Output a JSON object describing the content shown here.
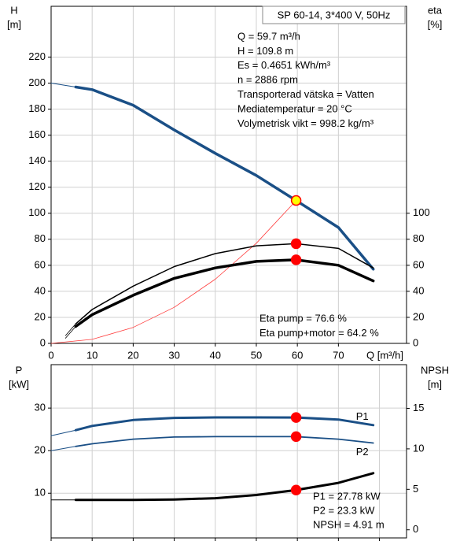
{
  "chart_data": [
    {
      "type": "line",
      "ylabel": [
        "H",
        "[m]"
      ],
      "y2label": [
        "eta",
        "[%]"
      ],
      "xlabel": "Q [m³/h]",
      "box_title": "SP 60-14, 3*400 V, 50Hz",
      "annotations": [
        "Q = 59.7 m³/h",
        "H = 109.8 m",
        "Es = 0.4651 kWh/m³",
        "n = 2886 rpm",
        "Transporterad vätska = Vatten",
        "Mediatemperatur = 20 °C",
        "Volymetrisk vikt = 998.2 kg/m³"
      ],
      "notes": [
        "Eta pump = 76.6 %",
        "Eta pump+motor = 64.2 %"
      ],
      "xlim": [
        0,
        86.6
      ],
      "xticks": [
        0,
        10,
        20,
        30,
        40,
        50,
        60,
        70
      ],
      "xtick_labels": true,
      "ylim": [
        0,
        259
      ],
      "yticks": [
        0,
        20,
        40,
        60,
        80,
        100,
        120,
        140,
        160,
        180,
        200,
        220
      ],
      "y2lim": [
        0,
        259
      ],
      "y2ticks": [
        0,
        20,
        40,
        60,
        80,
        100
      ],
      "grid": true,
      "series": [
        {
          "color": "#1a4f86",
          "line_width": 1,
          "x": [
            0,
            6
          ],
          "values": [
            200,
            197
          ]
        },
        {
          "color": "#1a4f86",
          "line_width": 3.5,
          "x": [
            6,
            10,
            20,
            30,
            40,
            50,
            59.7,
            70,
            78.5
          ],
          "values": [
            197,
            195,
            183,
            164,
            146,
            129,
            109.8,
            89,
            57
          ]
        },
        {
          "color": "#ff3b3b",
          "line_width": 0.8,
          "x": [
            0,
            10,
            20,
            30,
            40,
            50,
            59.7
          ],
          "values": [
            0,
            3.1,
            12.3,
            27.7,
            49.3,
            77,
            109.8
          ]
        },
        {
          "color": "#000000",
          "line_width": 0.8,
          "axis": "y2",
          "x": [
            3.5,
            6
          ],
          "values": [
            6,
            15
          ]
        },
        {
          "color": "#000000",
          "line_width": 1.5,
          "axis": "y2",
          "x": [
            6,
            10,
            20,
            30,
            40,
            50,
            59.7,
            70,
            78.5
          ],
          "values": [
            15,
            26,
            44,
            59,
            69,
            75,
            76.6,
            73,
            58
          ]
        },
        {
          "color": "#000000",
          "line_width": 0.8,
          "axis": "y2",
          "x": [
            3.5,
            6
          ],
          "values": [
            4,
            13
          ]
        },
        {
          "color": "#000000",
          "line_width": 3.5,
          "axis": "y2",
          "x": [
            6,
            10,
            20,
            30,
            40,
            50,
            59.7,
            70,
            78.5
          ],
          "values": [
            13,
            22,
            37,
            50,
            58,
            63,
            64.2,
            60,
            48
          ]
        }
      ],
      "points": [
        {
          "x": 59.7,
          "y": 109.8,
          "fill": "#ffff00",
          "stroke": "#ff0000"
        },
        {
          "x": 59.7,
          "y": 76.6,
          "axis": "y2",
          "fill": "#ff0000",
          "stroke": "#ff0000"
        },
        {
          "x": 59.7,
          "y": 64.2,
          "axis": "y2",
          "fill": "#ff0000",
          "stroke": "#ff0000"
        }
      ]
    },
    {
      "type": "line",
      "ylabel": [
        "P",
        "[kW]"
      ],
      "y2label": [
        "NPSH",
        "[m]"
      ],
      "notes": [
        "P1 = 27.78 kW",
        "P2 = 23.3 kW",
        "NPSH = 4.91 m"
      ],
      "xlim": [
        0,
        86.6
      ],
      "xticks": [
        0,
        10,
        20,
        30,
        40,
        50,
        60,
        70,
        80
      ],
      "xtick_labels": false,
      "ylim": [
        -0.5,
        40.2
      ],
      "yticks": [
        10,
        20,
        30
      ],
      "y2lim": [
        -1,
        20.4
      ],
      "y2ticks": [
        0,
        5,
        10,
        15
      ],
      "grid": true,
      "series": [
        {
          "color": "#1a4f86",
          "line_width": 1,
          "x": [
            0,
            6
          ],
          "values": [
            23.5,
            24.8
          ]
        },
        {
          "name": "P1",
          "color": "#1a4f86",
          "line_width": 3,
          "x": [
            6,
            10,
            20,
            30,
            40,
            50,
            59.7,
            70,
            78.5
          ],
          "values": [
            24.8,
            25.8,
            27.2,
            27.7,
            27.8,
            27.8,
            27.78,
            27.3,
            26
          ]
        },
        {
          "color": "#1a4f86",
          "line_width": 1,
          "x": [
            0,
            6
          ],
          "values": [
            20,
            21
          ]
        },
        {
          "name": "P2",
          "color": "#1a4f86",
          "line_width": 1.8,
          "x": [
            6,
            10,
            20,
            30,
            40,
            50,
            59.7,
            70,
            78.5
          ],
          "values": [
            21,
            21.6,
            22.7,
            23.2,
            23.3,
            23.3,
            23.3,
            22.7,
            21.8
          ]
        },
        {
          "color": "#000000",
          "line_width": 1,
          "axis": "y2",
          "x": [
            0,
            6
          ],
          "values": [
            3.7,
            3.7
          ]
        },
        {
          "color": "#000000",
          "line_width": 3,
          "axis": "y2",
          "x": [
            6,
            20,
            30,
            40,
            50,
            59.7,
            70,
            78.5
          ],
          "values": [
            3.7,
            3.7,
            3.75,
            3.9,
            4.3,
            4.91,
            5.8,
            7.0
          ]
        }
      ],
      "points": [
        {
          "x": 59.7,
          "y": 27.78,
          "fill": "#ff0000",
          "stroke": "#ff0000"
        },
        {
          "x": 59.7,
          "y": 23.3,
          "fill": "#ff0000",
          "stroke": "#ff0000"
        },
        {
          "x": 59.7,
          "y": 4.91,
          "axis": "y2",
          "fill": "#ff0000",
          "stroke": "#ff0000"
        }
      ]
    }
  ]
}
